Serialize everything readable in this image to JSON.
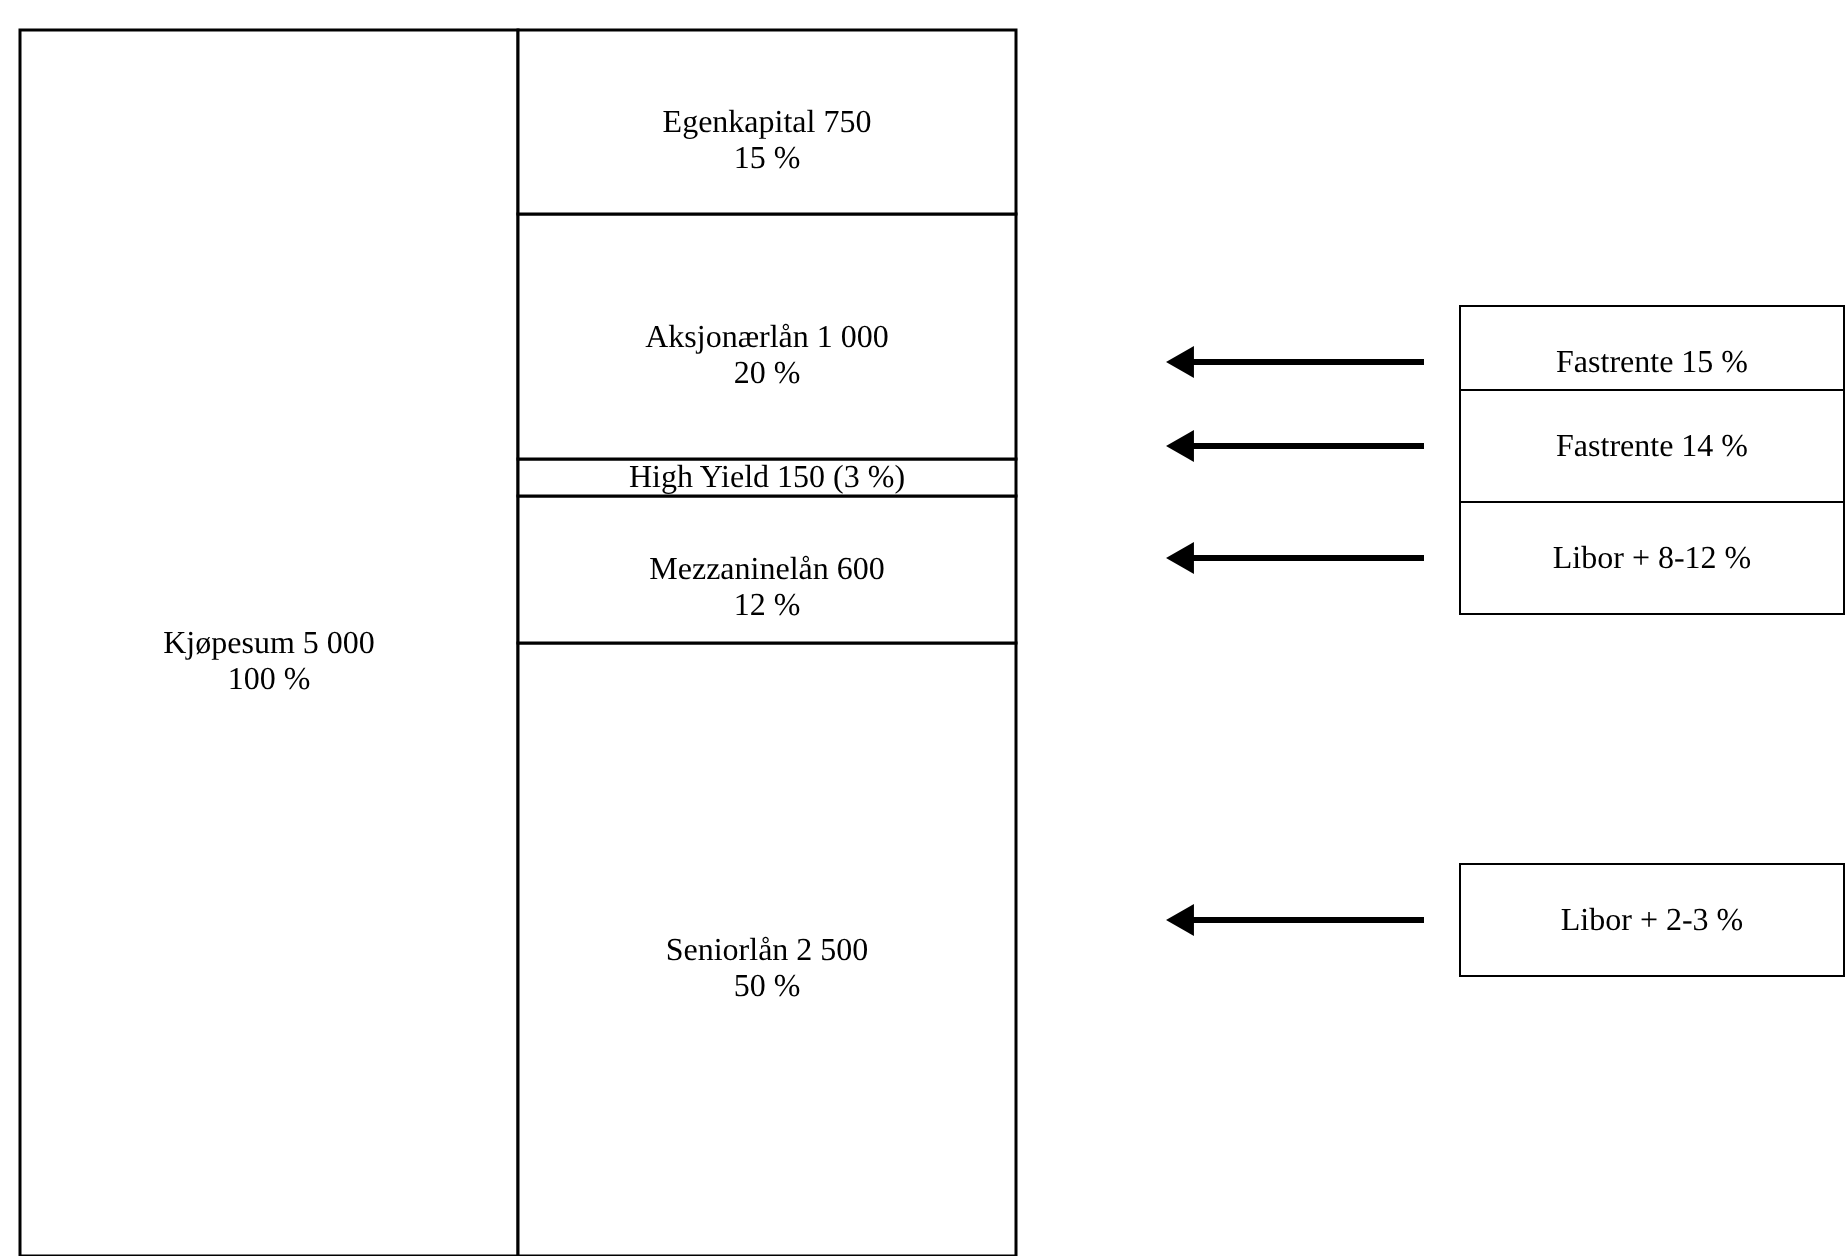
{
  "chart_data": {
    "type": "bar",
    "stacked": true,
    "categories": [
      null,
      null
    ],
    "series": [
      {
        "color": "#ffffff",
        "values": [
          5000,
          null
        ],
        "value_labels": [
          "Kjøpesum 5 000\n100 %",
          null
        ]
      },
      {
        "color": "#ffffff",
        "values": [
          null,
          2500
        ],
        "value_labels": [
          null,
          "Seniorlån 2 500\n50 %"
        ]
      },
      {
        "color": "#ffffff",
        "values": [
          null,
          600
        ],
        "value_labels": [
          null,
          "Mezzaninelån 600\n12 %"
        ]
      },
      {
        "color": "#ffffff",
        "values": [
          null,
          150
        ],
        "value_labels": [
          null,
          "High Yield 150 (3 %)"
        ]
      },
      {
        "color": "#ffffff",
        "values": [
          null,
          1000
        ],
        "value_labels": [
          null,
          "Aksjonærlån 1 000\n20 %"
        ]
      },
      {
        "color": "#ffffff",
        "values": [
          null,
          750
        ],
        "value_labels": [
          null,
          "Egenkapital 750\n15 %"
        ]
      }
    ],
    "ylim": [
      0,
      5000
    ],
    "tick_labels": false,
    "annotations": [
      "Fastrente 15 %",
      "Fastrente 14 %",
      "Libor + 8-12 %",
      "Libor + 2-3 %"
    ]
  }
}
